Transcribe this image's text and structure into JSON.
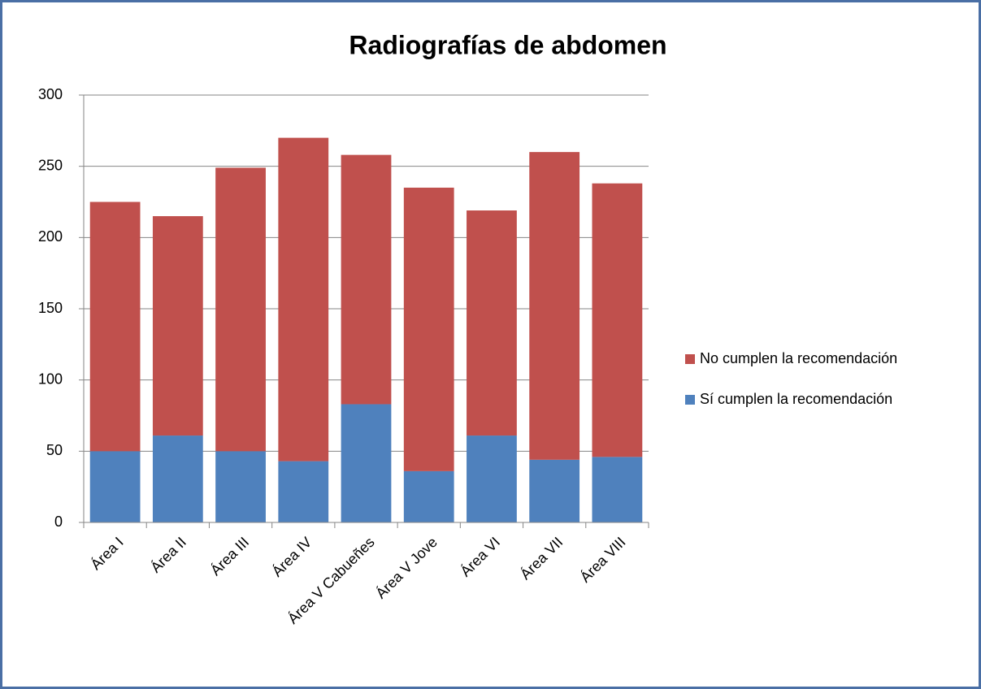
{
  "chart_data": {
    "type": "stacked_bar",
    "title": "Radiografías de abdomen",
    "categories": [
      "Área I",
      "Área II",
      "Área III",
      "Área IV",
      "Área V Cabueñes",
      "Área V Jove",
      "Área VI",
      "Área VII",
      "Área VIII"
    ],
    "series": [
      {
        "name": "Sí cumplen la recomendación",
        "color": "#4f81bd",
        "values": [
          50,
          61,
          50,
          43,
          83,
          36,
          61,
          44,
          46
        ]
      },
      {
        "name": "No cumplen la recomendación",
        "color": "#c0504d",
        "values": [
          175,
          154,
          199,
          227,
          175,
          199,
          158,
          216,
          192
        ]
      }
    ],
    "ylim": [
      0,
      300
    ],
    "yticks": [
      0,
      50,
      100,
      150,
      200,
      250,
      300
    ],
    "grid": true,
    "legend": "right"
  }
}
